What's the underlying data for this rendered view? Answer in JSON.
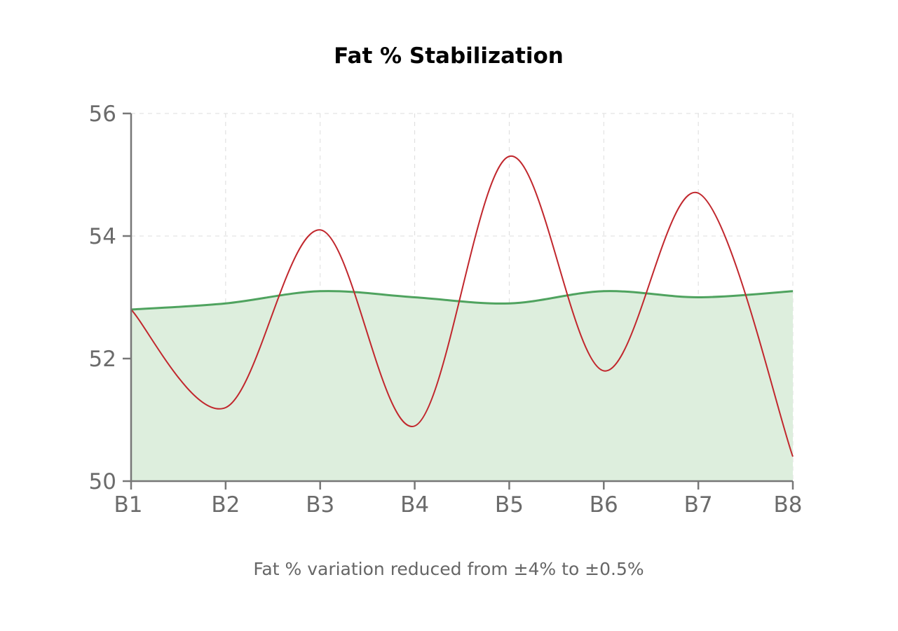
{
  "chart_data": {
    "type": "line",
    "title": "Fat % Stabilization",
    "subtitle": "Fat % variation reduced from ±4% to ±0.5%",
    "xlabel": "",
    "ylabel": "",
    "categories": [
      "B1",
      "B2",
      "B3",
      "B4",
      "B5",
      "B6",
      "B7",
      "B8"
    ],
    "ylim": [
      50,
      56
    ],
    "yticks": [
      50,
      52,
      54,
      56
    ],
    "grid": true,
    "legend": "none",
    "series": [
      {
        "values": [
          52.8,
          51.2,
          54.1,
          50.9,
          55.3,
          51.8,
          54.7,
          50.4
        ],
        "color": "#c1272d",
        "fill": false
      },
      {
        "values": [
          52.8,
          52.9,
          53.1,
          53.0,
          52.9,
          53.1,
          53.0,
          53.1
        ],
        "color": "#4fa35f",
        "fill": true,
        "fill_color": "#ddeedd"
      }
    ]
  }
}
